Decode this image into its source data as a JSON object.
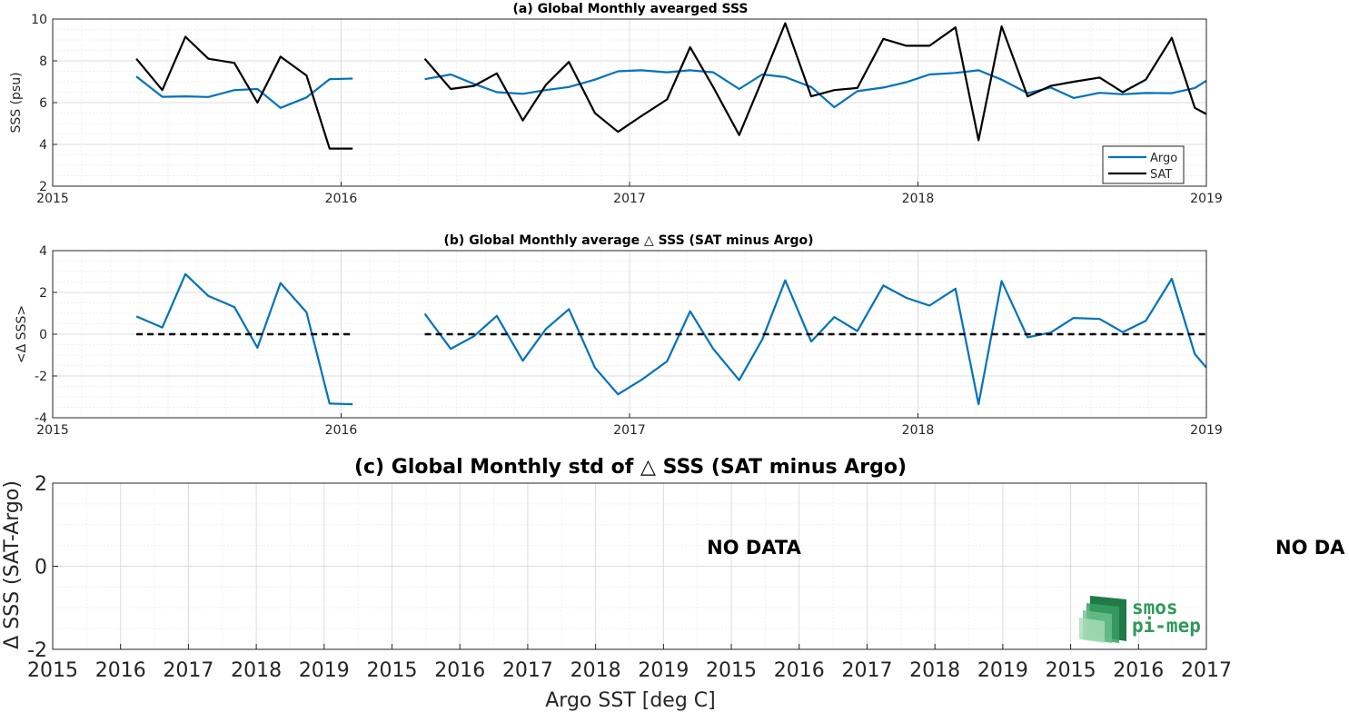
{
  "chart_data": [
    {
      "type": "line",
      "title": "(a) Global Monthly avearged SSS",
      "xlabel": "",
      "ylabel": "SSS (psu)",
      "xlim": [
        2015,
        2019
      ],
      "ylim": [
        2,
        10
      ],
      "xticks": [
        "2015",
        "2016",
        "2017",
        "2018",
        "2019"
      ],
      "yticks": [
        "2",
        "4",
        "6",
        "8",
        "10"
      ],
      "grid": true,
      "legend_position": "bottom-right",
      "series": [
        {
          "name": "Argo",
          "color": "#0072BD",
          "x": [
            2015.29,
            2015.38,
            2015.46,
            2015.54,
            2015.63,
            2015.71,
            2015.79,
            2015.88,
            2015.96,
            2016.04,
            null,
            2016.29,
            2016.38,
            2016.46,
            2016.54,
            2016.63,
            2016.71,
            2016.79,
            2016.88,
            2016.96,
            2017.04,
            2017.13,
            2017.21,
            2017.29,
            2017.38,
            2017.46,
            2017.54,
            2017.63,
            2017.71,
            2017.79,
            2017.88,
            2017.96,
            2018.04,
            2018.13,
            2018.21,
            2018.29,
            2018.38,
            2018.46,
            2018.54,
            2018.63,
            2018.71,
            2018.79,
            2018.88,
            2018.96,
            2019.0
          ],
          "values": [
            7.25,
            6.28,
            6.3,
            6.27,
            6.6,
            6.65,
            5.75,
            6.25,
            7.12,
            7.15,
            null,
            7.12,
            7.35,
            6.9,
            6.5,
            6.42,
            6.6,
            6.75,
            7.1,
            7.5,
            7.55,
            7.45,
            7.55,
            7.45,
            6.65,
            7.35,
            7.22,
            6.75,
            5.78,
            6.55,
            6.72,
            6.98,
            7.35,
            7.42,
            7.55,
            7.1,
            6.45,
            6.72,
            6.22,
            6.47,
            6.4,
            6.46,
            6.45,
            6.7,
            7.05
          ]
        },
        {
          "name": "SAT",
          "color": "#000000",
          "x": [
            2015.29,
            2015.38,
            2015.46,
            2015.54,
            2015.63,
            2015.71,
            2015.79,
            2015.88,
            2015.96,
            2016.04,
            null,
            2016.29,
            2016.38,
            2016.46,
            2016.54,
            2016.63,
            2016.71,
            2016.79,
            2016.88,
            2016.96,
            2017.04,
            2017.13,
            2017.21,
            2017.29,
            2017.38,
            2017.46,
            2017.54,
            2017.63,
            2017.71,
            2017.79,
            2017.88,
            2017.96,
            2018.04,
            2018.13,
            2018.21,
            2018.29,
            2018.38,
            2018.46,
            2018.54,
            2018.63,
            2018.71,
            2018.79,
            2018.88,
            2018.96,
            2019.0
          ],
          "values": [
            8.1,
            6.6,
            9.15,
            8.1,
            7.9,
            6.0,
            8.2,
            7.3,
            3.8,
            3.8,
            null,
            8.1,
            6.65,
            6.8,
            7.4,
            5.15,
            6.85,
            7.95,
            5.5,
            4.6,
            5.35,
            6.15,
            8.65,
            6.75,
            4.45,
            7.1,
            9.8,
            6.3,
            6.6,
            6.7,
            9.05,
            8.72,
            8.72,
            9.6,
            4.2,
            9.65,
            6.3,
            6.8,
            7.0,
            7.2,
            6.5,
            7.1,
            9.1,
            5.75,
            5.45
          ]
        }
      ]
    },
    {
      "type": "line",
      "title": "(b) Global Monthly average △ SSS (SAT minus Argo)",
      "xlabel": "",
      "ylabel": "<Δ SSS>",
      "xlim": [
        2015,
        2019
      ],
      "ylim": [
        -4,
        4
      ],
      "xticks": [
        "2015",
        "2016",
        "2017",
        "2018",
        "2019"
      ],
      "yticks": [
        "-4",
        "-2",
        "0",
        "2",
        "4"
      ],
      "grid": true,
      "series": [
        {
          "color": "#0072BD",
          "x": [
            2015.29,
            2015.38,
            2015.46,
            2015.54,
            2015.63,
            2015.71,
            2015.79,
            2015.88,
            2015.96,
            2016.04,
            null,
            2016.29,
            2016.38,
            2016.46,
            2016.54,
            2016.63,
            2016.71,
            2016.79,
            2016.88,
            2016.96,
            2017.04,
            2017.13,
            2017.21,
            2017.29,
            2017.38,
            2017.46,
            2017.54,
            2017.63,
            2017.71,
            2017.79,
            2017.88,
            2017.96,
            2018.04,
            2018.13,
            2018.21,
            2018.29,
            2018.38,
            2018.46,
            2018.54,
            2018.63,
            2018.71,
            2018.79,
            2018.88,
            2018.96,
            2019.0
          ],
          "values": [
            0.85,
            0.32,
            2.88,
            1.83,
            1.3,
            -0.65,
            2.45,
            1.05,
            -3.32,
            -3.35,
            null,
            0.98,
            -0.7,
            -0.1,
            0.88,
            -1.27,
            0.25,
            1.2,
            -1.6,
            -2.88,
            -2.2,
            -1.3,
            1.1,
            -0.7,
            -2.2,
            -0.25,
            2.58,
            -0.35,
            0.82,
            0.15,
            2.33,
            1.74,
            1.37,
            2.18,
            -3.35,
            2.55,
            -0.15,
            0.08,
            0.78,
            0.73,
            0.1,
            0.64,
            2.65,
            -0.95,
            -1.6
          ]
        },
        {
          "style": "dashed",
          "color": "#000000",
          "x": [
            2015.29,
            2016.04,
            null,
            2016.29,
            2019.0
          ],
          "values": [
            0,
            0,
            null,
            0,
            0
          ]
        }
      ]
    },
    {
      "type": "line",
      "title": "(c) Global Monthly std of △ SSS (SAT minus Argo)",
      "xlabel": "Argo SST [deg C]",
      "ylabel": "Δ SSS (SAT-Argo)",
      "ylim": [
        -2,
        2
      ],
      "xticks": [
        "2015",
        "2016",
        "2017",
        "2018",
        "2019",
        "2015",
        "2016",
        "2017",
        "2018",
        "2019",
        "2015",
        "2016",
        "2017",
        "2018",
        "2019",
        "2015",
        "2016",
        "2017"
      ],
      "yticks": [
        "-2",
        "0",
        "2"
      ],
      "grid": true,
      "annotations": [
        "NO DATA",
        "NO DA"
      ],
      "series": []
    }
  ],
  "logo": {
    "line1": "smos",
    "line2": "pi-mep",
    "color": "#2e9a5a"
  }
}
